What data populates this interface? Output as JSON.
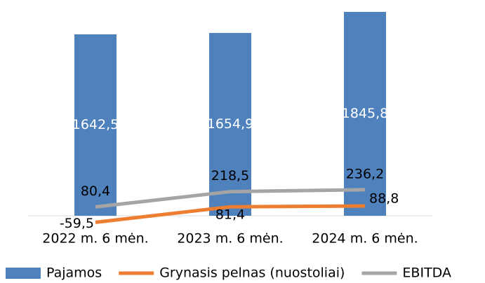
{
  "chart_data": {
    "type": "bar-line",
    "categories": [
      "2022 m. 6 mėn.",
      "2023 m. 6 mėn.",
      "2024 m. 6 mėn."
    ],
    "ylim": [
      -100,
      1900
    ],
    "legend": "bottom",
    "series": [
      {
        "name": "Pajamos",
        "type": "bar",
        "color": "#4f81bd",
        "values": [
          1642.5,
          1654.9,
          1845.8
        ],
        "value_labels": [
          "1642,5",
          "1654,9",
          "1845,8"
        ]
      },
      {
        "name": "Grynasis pelnas (nuostoliai)",
        "type": "line",
        "color": "#ed7d31",
        "values": [
          -59.5,
          81.4,
          88.8
        ],
        "value_labels": [
          "-59,5",
          "81,4",
          "88,8"
        ]
      },
      {
        "name": "EBITDA",
        "type": "line",
        "color": "#a5a5a5",
        "values": [
          80.4,
          218.5,
          236.2
        ],
        "value_labels": [
          "80,4",
          "218,5",
          "236,2"
        ]
      }
    ]
  }
}
